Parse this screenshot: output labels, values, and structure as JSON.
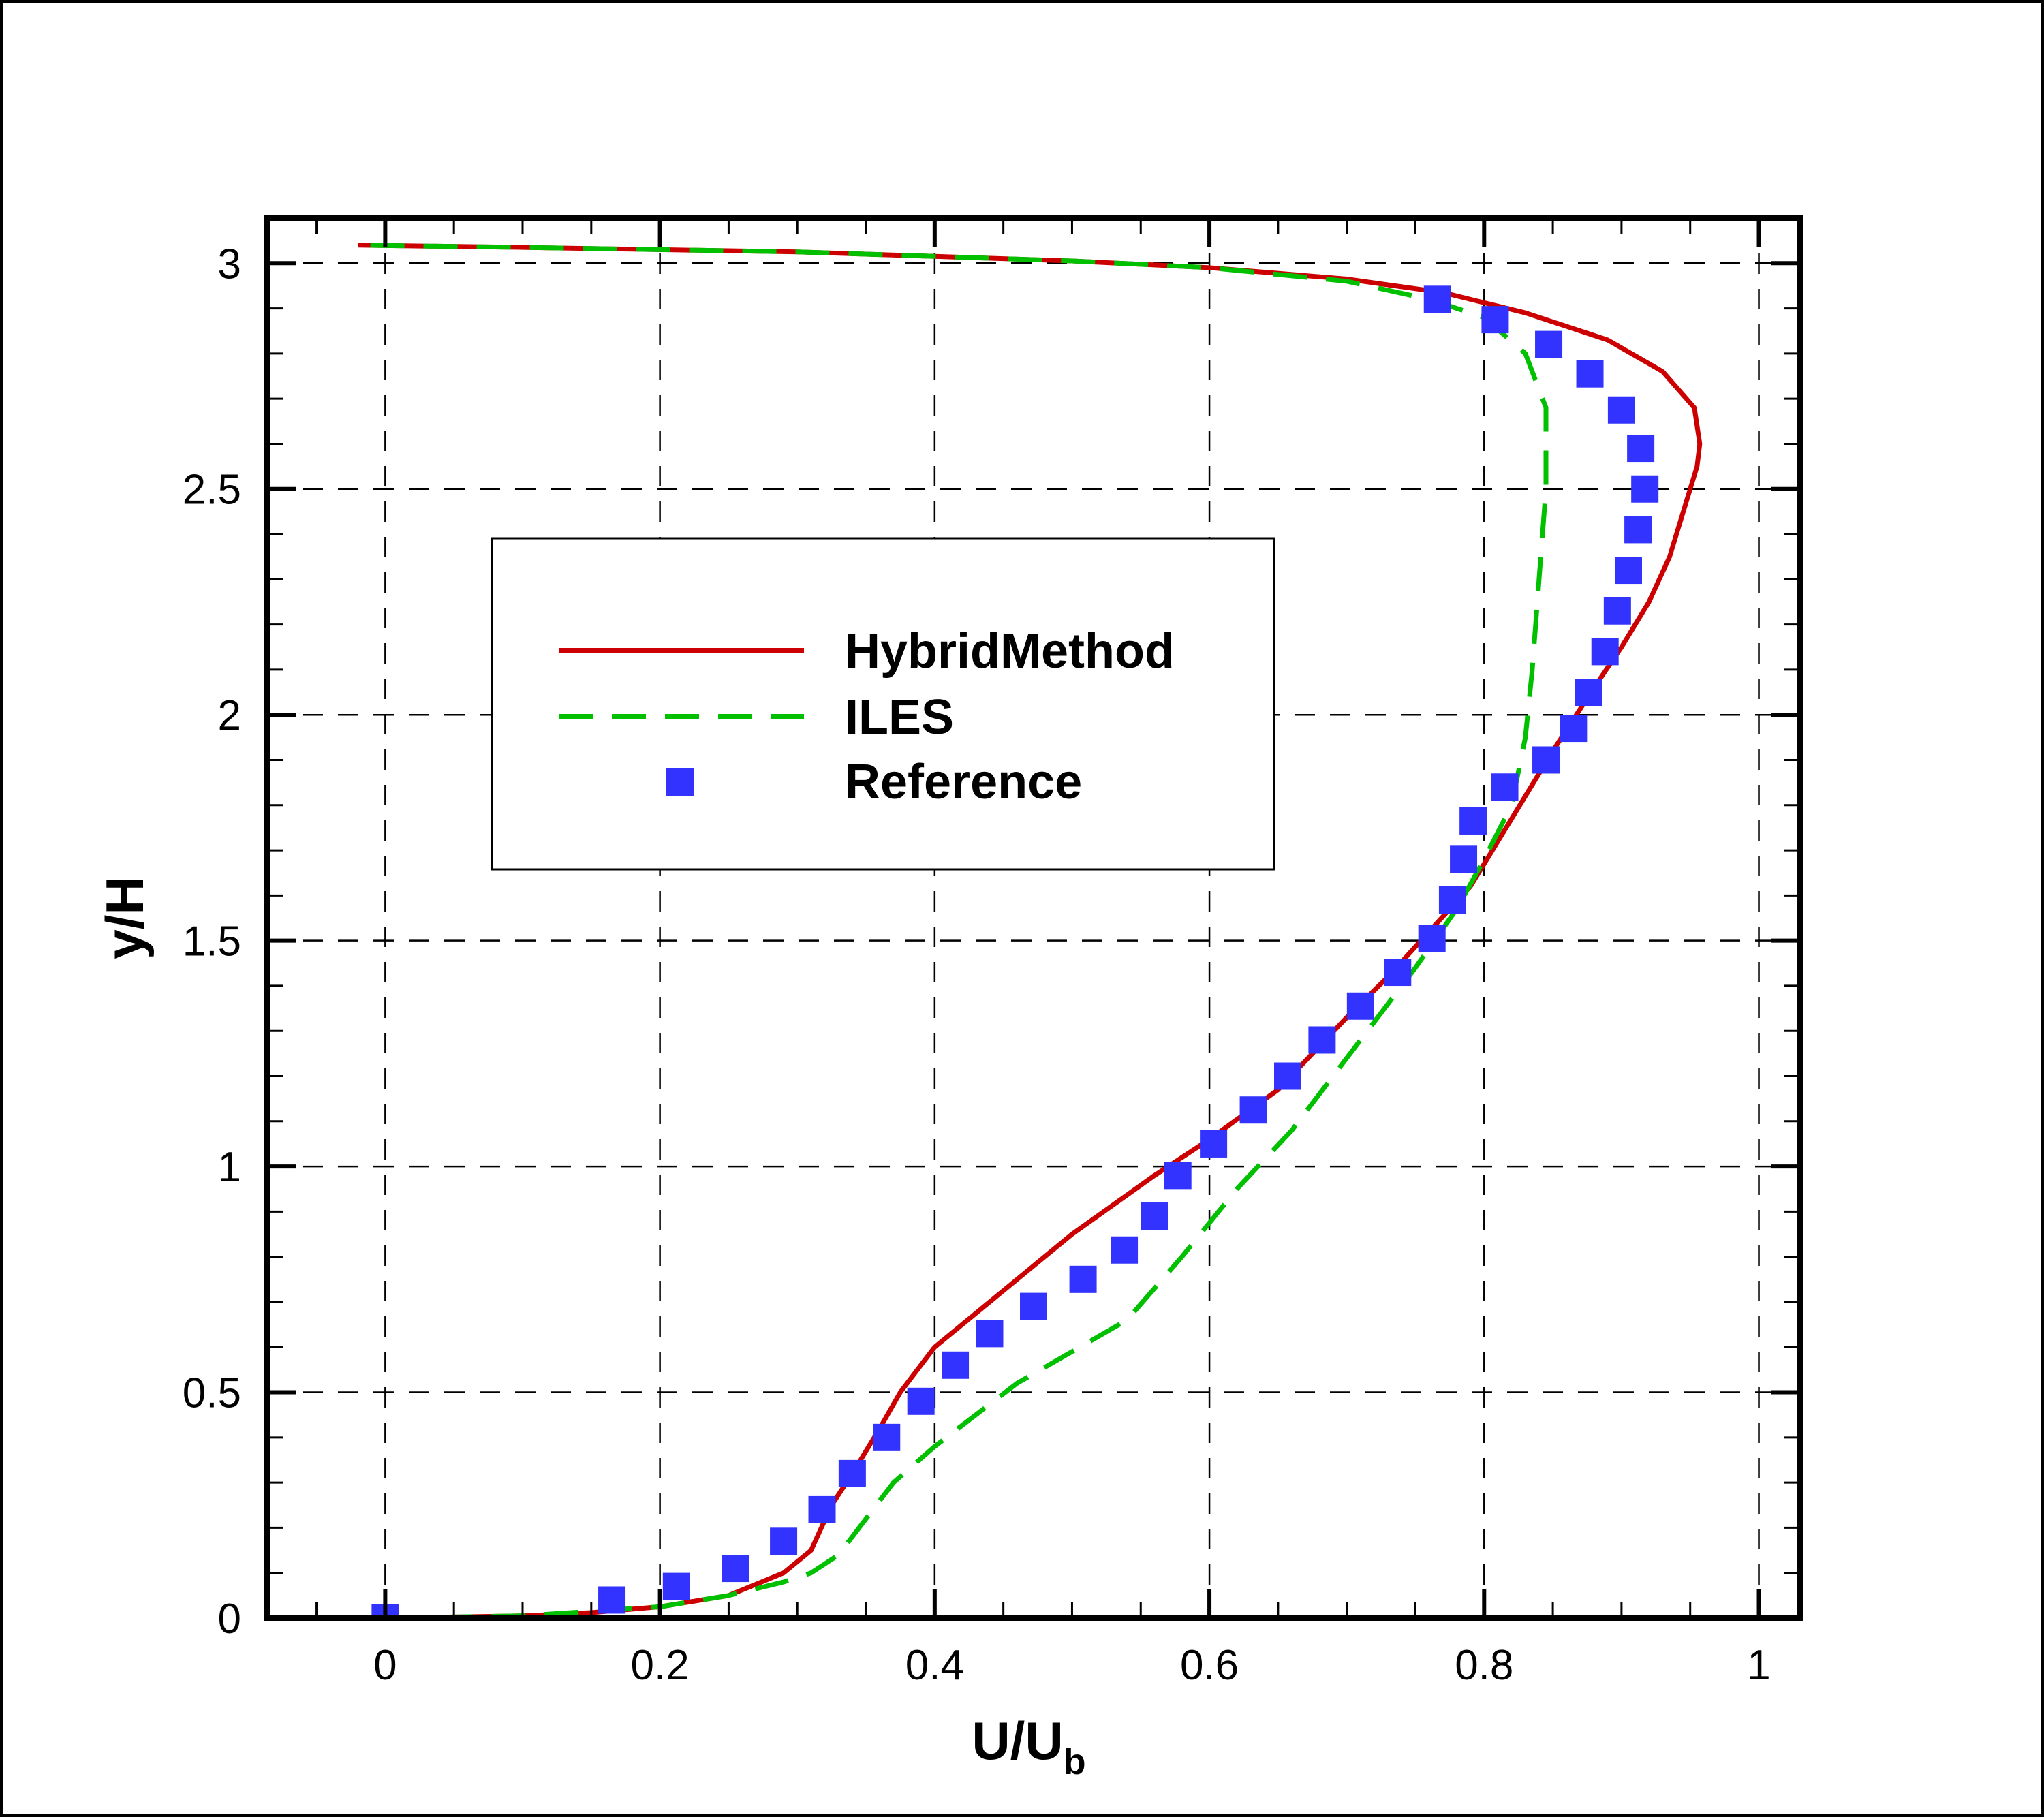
{
  "chart_data": {
    "type": "line",
    "xlabel": "U/U",
    "xlabel_sub": "b",
    "ylabel": "y/H",
    "xlim": [
      -0.086,
      1.03
    ],
    "ylim": [
      0,
      3.1
    ],
    "xticks": [
      0,
      0.2,
      0.4,
      0.6,
      0.8,
      1
    ],
    "xtick_labels": [
      "0",
      "0.2",
      "0.4",
      "0.6",
      "0.8",
      "1"
    ],
    "yticks": [
      0,
      0.5,
      1,
      1.5,
      2,
      2.5,
      3
    ],
    "ytick_labels": [
      "0",
      "0.5",
      "1",
      "1.5",
      "2",
      "2.5",
      "3"
    ],
    "x_minor_step": 0.05,
    "y_minor_step": 0.1,
    "grid": true,
    "legend": "upper-left inside plot",
    "series": [
      {
        "name": "HybridMethod",
        "style": "solid",
        "color": "#cc0000",
        "points": [
          [
            0.0,
            0.0
          ],
          [
            0.1,
            0.005
          ],
          [
            0.15,
            0.012
          ],
          [
            0.2,
            0.025
          ],
          [
            0.25,
            0.05
          ],
          [
            0.29,
            0.1
          ],
          [
            0.31,
            0.15
          ],
          [
            0.325,
            0.25
          ],
          [
            0.34,
            0.32
          ],
          [
            0.36,
            0.42
          ],
          [
            0.375,
            0.5
          ],
          [
            0.4,
            0.6
          ],
          [
            0.44,
            0.7
          ],
          [
            0.5,
            0.85
          ],
          [
            0.56,
            0.98
          ],
          [
            0.6,
            1.06
          ],
          [
            0.65,
            1.17
          ],
          [
            0.7,
            1.33
          ],
          [
            0.73,
            1.42
          ],
          [
            0.76,
            1.52
          ],
          [
            0.79,
            1.62
          ],
          [
            0.81,
            1.72
          ],
          [
            0.83,
            1.82
          ],
          [
            0.85,
            1.92
          ],
          [
            0.88,
            2.06
          ],
          [
            0.9,
            2.15
          ],
          [
            0.92,
            2.25
          ],
          [
            0.935,
            2.35
          ],
          [
            0.945,
            2.45
          ],
          [
            0.955,
            2.55
          ],
          [
            0.957,
            2.6
          ],
          [
            0.953,
            2.68
          ],
          [
            0.93,
            2.76
          ],
          [
            0.89,
            2.83
          ],
          [
            0.83,
            2.89
          ],
          [
            0.77,
            2.935
          ],
          [
            0.7,
            2.965
          ],
          [
            0.6,
            2.99
          ],
          [
            0.5,
            3.005
          ],
          [
            0.4,
            3.015
          ],
          [
            0.3,
            3.025
          ],
          [
            0.2,
            3.03
          ],
          [
            0.1,
            3.035
          ],
          [
            -0.02,
            3.04
          ]
        ]
      },
      {
        "name": "ILES",
        "style": "dashed",
        "color": "#00c000",
        "points": [
          [
            0.0,
            0.0
          ],
          [
            0.1,
            0.005
          ],
          [
            0.15,
            0.015
          ],
          [
            0.2,
            0.025
          ],
          [
            0.25,
            0.05
          ],
          [
            0.29,
            0.08
          ],
          [
            0.31,
            0.1
          ],
          [
            0.32,
            0.12
          ],
          [
            0.33,
            0.14
          ],
          [
            0.345,
            0.2
          ],
          [
            0.37,
            0.3
          ],
          [
            0.4,
            0.38
          ],
          [
            0.43,
            0.45
          ],
          [
            0.46,
            0.52
          ],
          [
            0.5,
            0.59
          ],
          [
            0.54,
            0.66
          ],
          [
            0.58,
            0.8
          ],
          [
            0.62,
            0.95
          ],
          [
            0.66,
            1.08
          ],
          [
            0.69,
            1.2
          ],
          [
            0.72,
            1.32
          ],
          [
            0.75,
            1.44
          ],
          [
            0.78,
            1.57
          ],
          [
            0.8,
            1.68
          ],
          [
            0.82,
            1.8
          ],
          [
            0.83,
            1.95
          ],
          [
            0.835,
            2.1
          ],
          [
            0.84,
            2.3
          ],
          [
            0.845,
            2.5
          ],
          [
            0.845,
            2.68
          ],
          [
            0.83,
            2.8
          ],
          [
            0.8,
            2.88
          ],
          [
            0.76,
            2.92
          ],
          [
            0.7,
            2.96
          ],
          [
            0.6,
            2.99
          ],
          [
            0.5,
            3.005
          ],
          [
            0.4,
            3.015
          ],
          [
            0.3,
            3.025
          ],
          [
            0.2,
            3.03
          ],
          [
            0.1,
            3.035
          ],
          [
            -0.02,
            3.04
          ]
        ]
      },
      {
        "name": "Reference",
        "style": "markers",
        "color": "#3333ff",
        "points": [
          [
            0.0,
            0.0
          ],
          [
            0.165,
            0.04
          ],
          [
            0.212,
            0.07
          ],
          [
            0.255,
            0.11
          ],
          [
            0.29,
            0.17
          ],
          [
            0.318,
            0.24
          ],
          [
            0.34,
            0.32
          ],
          [
            0.365,
            0.4
          ],
          [
            0.39,
            0.48
          ],
          [
            0.415,
            0.56
          ],
          [
            0.44,
            0.63
          ],
          [
            0.472,
            0.69
          ],
          [
            0.508,
            0.75
          ],
          [
            0.538,
            0.815
          ],
          [
            0.56,
            0.89
          ],
          [
            0.577,
            0.98
          ],
          [
            0.603,
            1.05
          ],
          [
            0.632,
            1.125
          ],
          [
            0.657,
            1.2
          ],
          [
            0.682,
            1.28
          ],
          [
            0.71,
            1.355
          ],
          [
            0.737,
            1.43
          ],
          [
            0.762,
            1.505
          ],
          [
            0.777,
            1.59
          ],
          [
            0.785,
            1.68
          ],
          [
            0.792,
            1.765
          ],
          [
            0.815,
            1.84
          ],
          [
            0.845,
            1.9
          ],
          [
            0.865,
            1.97
          ],
          [
            0.876,
            2.05
          ],
          [
            0.888,
            2.14
          ],
          [
            0.897,
            2.23
          ],
          [
            0.905,
            2.32
          ],
          [
            0.912,
            2.41
          ],
          [
            0.917,
            2.5
          ],
          [
            0.914,
            2.59
          ],
          [
            0.9,
            2.675
          ],
          [
            0.877,
            2.755
          ],
          [
            0.847,
            2.82
          ],
          [
            0.808,
            2.875
          ],
          [
            0.766,
            2.92
          ]
        ]
      }
    ]
  }
}
